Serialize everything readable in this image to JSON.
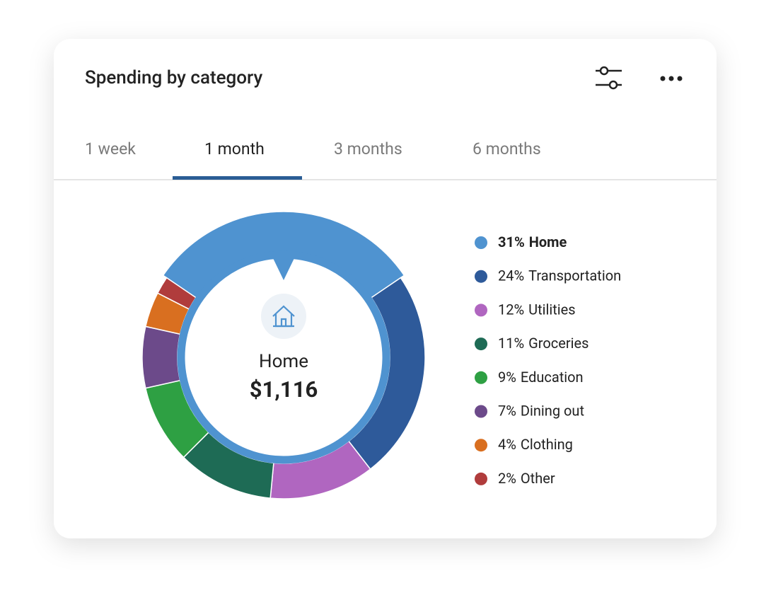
{
  "card": {
    "title": "Spending by category",
    "tabs": [
      "1 week",
      "1 month",
      "3 months",
      "6 months"
    ]
  },
  "chart_data": {
    "type": "donut",
    "categories": [
      "Home",
      "Transportation",
      "Utilities",
      "Groceries",
      "Education",
      "Dining out",
      "Clothing",
      "Other"
    ],
    "values": [
      31,
      24,
      12,
      11,
      9,
      7,
      4,
      2
    ],
    "value_labels": [
      "31%",
      "24%",
      "12%",
      "11%",
      "9%",
      "7%",
      "4%",
      "2%"
    ],
    "colors": [
      "#4f93d0",
      "#2e5a9a",
      "#b066c0",
      "#1e6b55",
      "#2ea043",
      "#6c4a8a",
      "#d96f20",
      "#b03c3c"
    ],
    "center_amount": "$1,116"
  }
}
